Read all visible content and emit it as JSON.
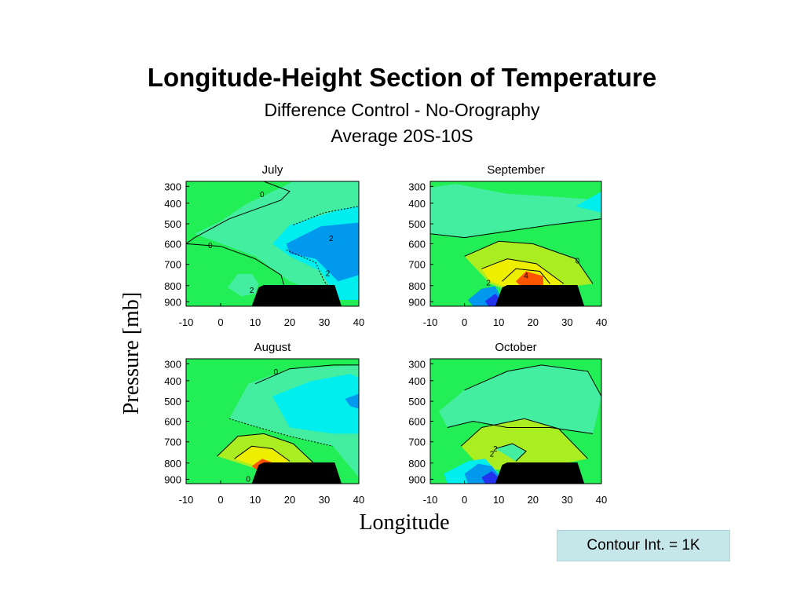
{
  "title": "Longitude-Height Section of Temperature",
  "subtitle_1": "Difference Control - No-Orography",
  "subtitle_2": "Average 20S-10S",
  "ylabel": "Pressure [mb]",
  "xlabel": "Longitude",
  "contour_note": "Contour Int. = 1K",
  "colors": {
    "background_green": "#22ee55",
    "light_green": "#44eea0",
    "cyan": "#00eeee",
    "blue": "#0099ee",
    "dark_blue": "#2233ee",
    "yellow_green": "#aaee22",
    "yellow": "#eeee00",
    "orange": "#ff5500",
    "orography": "#000000"
  },
  "chart_data": [
    {
      "type": "contour",
      "title": "July",
      "x_ticks": [
        "-10",
        "0",
        "10",
        "20",
        "30",
        "40"
      ],
      "y_ticks": [
        "300",
        "400",
        "500",
        "600",
        "700",
        "800",
        "900"
      ],
      "xlim": [
        -10,
        40
      ],
      "ylim": [
        900,
        300
      ],
      "contour_labels": [
        {
          "text": "0",
          "x": 12,
          "y": 345
        },
        {
          "text": "0",
          "x": -3,
          "y": 605
        },
        {
          "text": "2",
          "x": 32,
          "y": 570
        },
        {
          "text": "2",
          "x": 31,
          "y": 740
        },
        {
          "text": "2",
          "x": 9,
          "y": 825
        }
      ]
    },
    {
      "type": "contour",
      "title": "September",
      "x_ticks": [
        "-10",
        "0",
        "10",
        "20",
        "30",
        "40"
      ],
      "y_ticks": [
        "300",
        "400",
        "500",
        "600",
        "700",
        "800",
        "900"
      ],
      "xlim": [
        -10,
        40
      ],
      "ylim": [
        900,
        300
      ],
      "contour_labels": [
        {
          "text": "0",
          "x": 33,
          "y": 680
        },
        {
          "text": "2",
          "x": 7,
          "y": 785
        },
        {
          "text": "4",
          "x": 18,
          "y": 750
        }
      ]
    },
    {
      "type": "contour",
      "title": "August",
      "x_ticks": [
        "-10",
        "0",
        "10",
        "20",
        "30",
        "40"
      ],
      "y_ticks": [
        "300",
        "400",
        "500",
        "600",
        "700",
        "800",
        "900"
      ],
      "xlim": [
        -10,
        40
      ],
      "ylim": [
        900,
        300
      ],
      "contour_labels": [
        {
          "text": "0",
          "x": 16,
          "y": 345
        },
        {
          "text": "0",
          "x": 8,
          "y": 895
        }
      ]
    },
    {
      "type": "contour",
      "title": "October",
      "x_ticks": [
        "-10",
        "0",
        "10",
        "20",
        "30",
        "40"
      ],
      "y_ticks": [
        "300",
        "400",
        "500",
        "600",
        "700",
        "800",
        "900"
      ],
      "xlim": [
        -10,
        40
      ],
      "ylim": [
        900,
        300
      ],
      "contour_labels": [
        {
          "text": "2",
          "x": 9,
          "y": 730
        },
        {
          "text": "2",
          "x": 8,
          "y": 755
        }
      ]
    }
  ]
}
